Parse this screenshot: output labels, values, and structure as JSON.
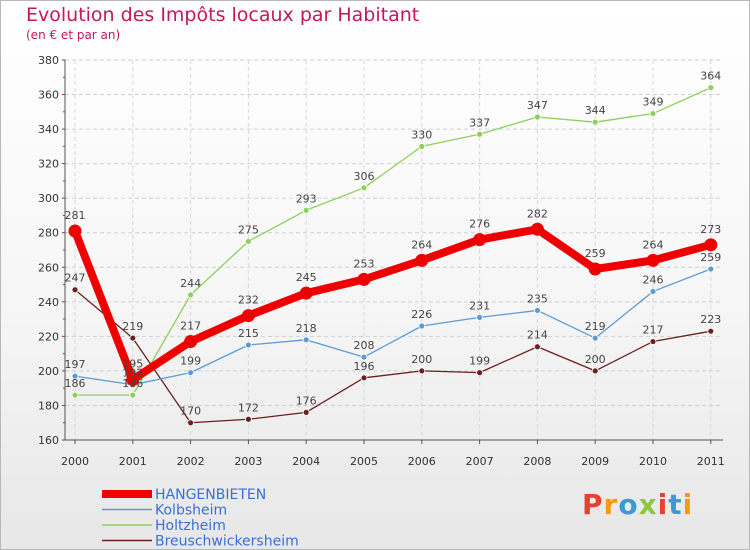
{
  "title": "Evolution des Impôts locaux par Habitant",
  "subtitle": "(en € et par an)",
  "logo_text": "Proxiti",
  "logo_colors": [
    "#e8412f",
    "#f39c12",
    "#3a9bd5",
    "#8dc63f",
    "#e8412f",
    "#3a9bd5",
    "#f39c12"
  ],
  "chart_data": {
    "type": "line",
    "x": [
      "2000",
      "2001",
      "2002",
      "2003",
      "2004",
      "2005",
      "2006",
      "2007",
      "2008",
      "2009",
      "2010",
      "2011"
    ],
    "ylim": [
      160,
      380
    ],
    "yticks": [
      160,
      180,
      200,
      220,
      240,
      260,
      280,
      300,
      320,
      340,
      360,
      380
    ],
    "grid": true,
    "legend_position": "bottom-left",
    "series": [
      {
        "name": "HANGENBIETEN",
        "color": "#ee0000",
        "values": [
          281,
          195,
          217,
          232,
          245,
          253,
          264,
          276,
          282,
          259,
          264,
          273
        ],
        "labels": [
          "281",
          "195",
          "217",
          "232",
          "245",
          "253",
          "264",
          "276",
          "282",
          "259",
          "264",
          "273"
        ]
      },
      {
        "name": "Kolbsheim",
        "color": "#5b9bd5",
        "values": [
          197,
          192,
          199,
          215,
          218,
          208,
          226,
          231,
          235,
          219,
          246,
          259
        ],
        "labels": [
          "197",
          "192",
          "199",
          "215",
          "218",
          "208",
          "226",
          "231",
          "235",
          "219",
          "246",
          "259"
        ]
      },
      {
        "name": "Holtzheim",
        "color": "#8cd05a",
        "values": [
          186,
          186,
          244,
          275,
          293,
          306,
          330,
          337,
          347,
          344,
          349,
          364
        ],
        "labels": [
          "186",
          "186",
          "244",
          "275",
          "293",
          "306",
          "330",
          "337",
          "347",
          "344",
          "349",
          "364"
        ]
      },
      {
        "name": "Breuschwickersheim",
        "color": "#6b1f1f",
        "values": [
          247,
          219,
          170,
          172,
          176,
          196,
          200,
          199,
          214,
          200,
          217,
          223
        ],
        "labels": [
          "247",
          "219",
          "170",
          "172",
          "176",
          "196",
          "200",
          "199",
          "214",
          "200",
          "217",
          "223"
        ]
      }
    ]
  }
}
